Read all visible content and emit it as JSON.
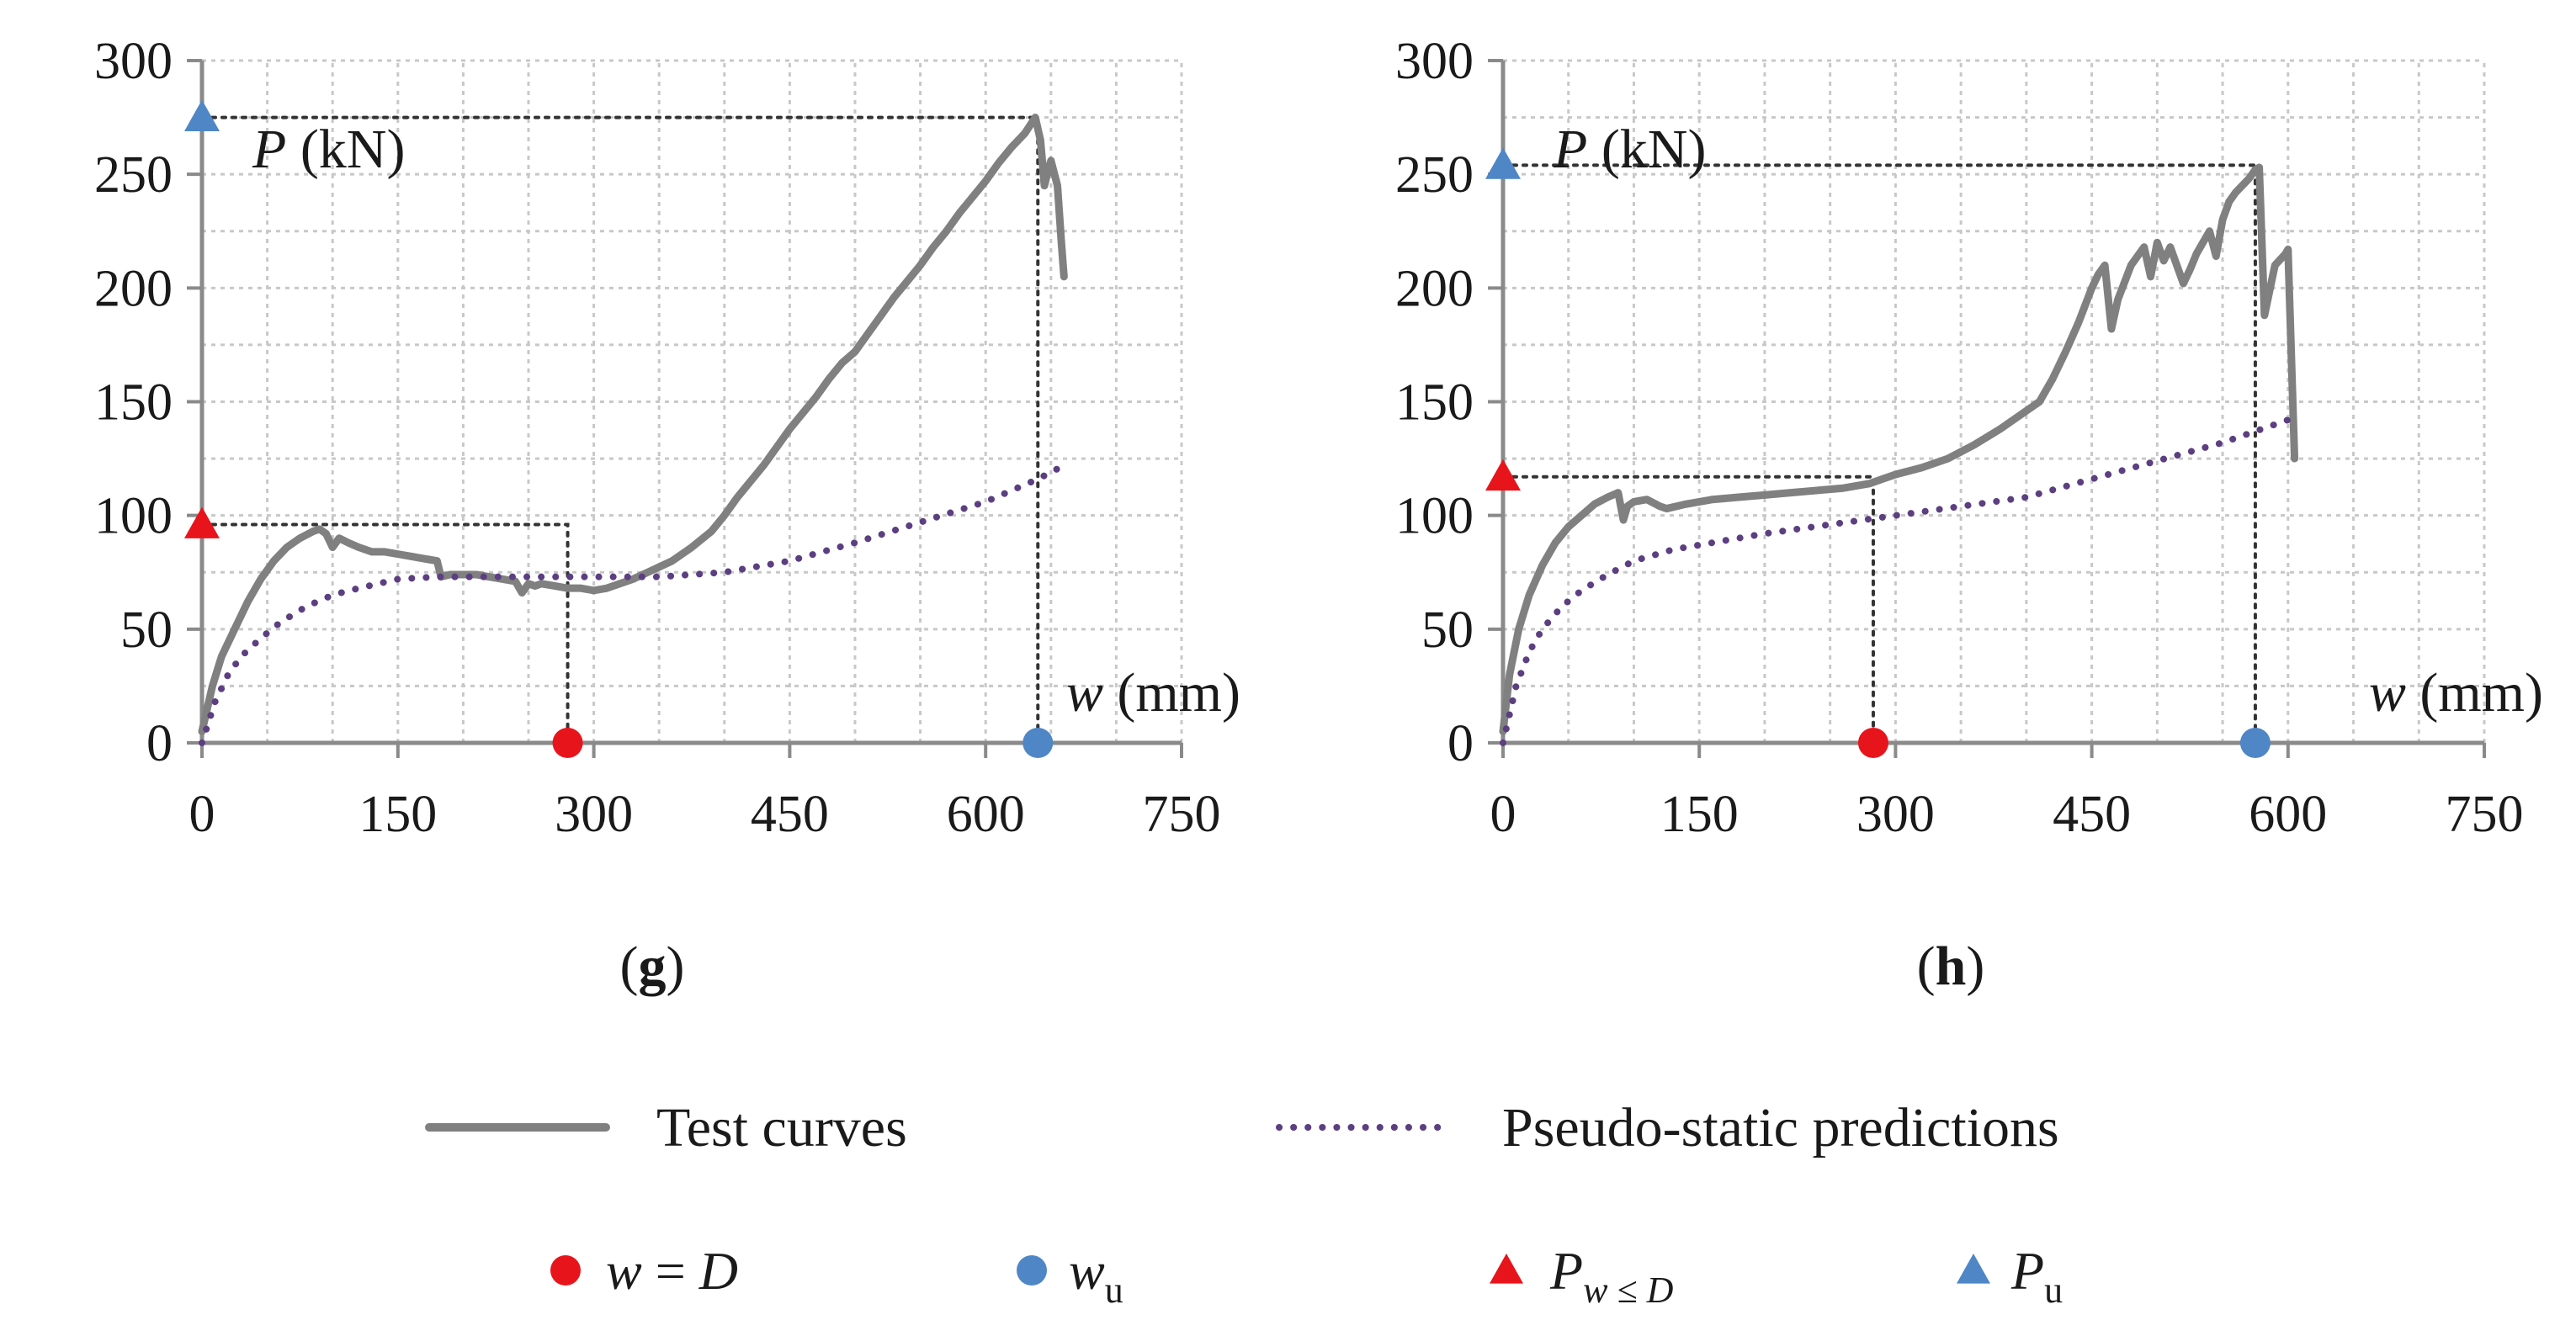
{
  "chart_data": [
    {
      "type": "line",
      "panel": "(g)",
      "panel_letter": "g",
      "xlabel": "w (mm)",
      "ylabel": "P (kN)",
      "xlim": [
        0,
        750
      ],
      "ylim": [
        0,
        300
      ],
      "xticks": [
        0,
        150,
        300,
        450,
        600,
        750
      ],
      "yticks": [
        0,
        50,
        100,
        150,
        200,
        250,
        300
      ],
      "grid": true,
      "series": [
        {
          "name": "Test curves",
          "style": "solid",
          "color": "#808080",
          "x": [
            0,
            8,
            15,
            25,
            35,
            45,
            55,
            65,
            75,
            85,
            90,
            95,
            100,
            105,
            112,
            120,
            130,
            140,
            150,
            160,
            170,
            180,
            183,
            190,
            200,
            210,
            220,
            230,
            240,
            245,
            250,
            255,
            260,
            270,
            280,
            290,
            300,
            310,
            320,
            330,
            345,
            360,
            375,
            390,
            400,
            410,
            420,
            430,
            440,
            450,
            460,
            470,
            480,
            490,
            500,
            510,
            520,
            530,
            540,
            550,
            560,
            570,
            580,
            590,
            600,
            610,
            620,
            630,
            638,
            642,
            645,
            648,
            650,
            655,
            658,
            660
          ],
          "y": [
            5,
            25,
            38,
            50,
            62,
            72,
            80,
            86,
            90,
            93,
            94,
            92,
            86,
            90,
            88,
            86,
            84,
            84,
            83,
            82,
            81,
            80,
            73,
            74,
            74,
            74,
            73,
            72,
            71,
            66,
            70,
            69,
            70,
            69,
            68,
            68,
            67,
            68,
            70,
            72,
            76,
            80,
            86,
            93,
            100,
            108,
            115,
            122,
            130,
            138,
            145,
            152,
            160,
            167,
            172,
            180,
            188,
            196,
            203,
            210,
            218,
            225,
            233,
            240,
            247,
            255,
            262,
            268,
            275,
            265,
            245,
            252,
            256,
            245,
            220,
            205
          ]
        },
        {
          "name": "Pseudo-static predictions",
          "style": "dotted",
          "color": "#5b3f80",
          "x": [
            0,
            10,
            20,
            30,
            45,
            60,
            80,
            100,
            120,
            150,
            180,
            210,
            250,
            300,
            350,
            400,
            450,
            500,
            550,
            600,
            640,
            660
          ],
          "y": [
            0,
            18,
            30,
            38,
            46,
            53,
            60,
            65,
            68,
            72,
            73,
            73,
            73,
            73,
            73,
            75,
            80,
            88,
            97,
            106,
            116,
            122
          ]
        }
      ],
      "markers": [
        {
          "kind": "w=D",
          "shape": "circle",
          "color": "#e8141b",
          "x": 280,
          "y": 0
        },
        {
          "kind": "P_w<=D",
          "shape": "triangle",
          "color": "#e8141b",
          "x": 0,
          "y": 96
        },
        {
          "kind": "w_u",
          "shape": "circle",
          "color": "#4f86c6",
          "x": 640,
          "y": 0
        },
        {
          "kind": "P_u",
          "shape": "triangle",
          "color": "#4f86c6",
          "x": 0,
          "y": 275
        }
      ],
      "guide_lines": [
        {
          "x": [
            0,
            280,
            280
          ],
          "y": [
            96,
            96,
            0
          ]
        },
        {
          "x": [
            0,
            640,
            640
          ],
          "y": [
            275,
            275,
            0
          ]
        }
      ]
    },
    {
      "type": "line",
      "panel": "(h)",
      "panel_letter": "h",
      "xlabel": "w (mm)",
      "ylabel": "P (kN)",
      "xlim": [
        0,
        750
      ],
      "ylim": [
        0,
        300
      ],
      "xticks": [
        0,
        150,
        300,
        450,
        600,
        750
      ],
      "yticks": [
        0,
        50,
        100,
        150,
        200,
        250,
        300
      ],
      "grid": true,
      "series": [
        {
          "name": "Test curves",
          "style": "solid",
          "color": "#808080",
          "x": [
            0,
            5,
            12,
            20,
            30,
            40,
            50,
            60,
            70,
            80,
            88,
            92,
            95,
            100,
            110,
            120,
            125,
            140,
            160,
            180,
            200,
            220,
            240,
            260,
            280,
            290,
            300,
            320,
            340,
            360,
            380,
            400,
            410,
            420,
            430,
            440,
            450,
            455,
            460,
            465,
            470,
            480,
            490,
            495,
            500,
            505,
            510,
            520,
            525,
            530,
            540,
            545,
            550,
            555,
            560,
            570,
            575,
            578,
            582,
            590,
            598,
            600,
            602,
            605
          ],
          "y": [
            5,
            30,
            50,
            65,
            78,
            88,
            95,
            100,
            105,
            108,
            110,
            98,
            104,
            106,
            107,
            104,
            103,
            105,
            107,
            108,
            109,
            110,
            111,
            112,
            114,
            116,
            118,
            121,
            125,
            131,
            138,
            146,
            150,
            160,
            172,
            185,
            200,
            206,
            210,
            182,
            195,
            210,
            218,
            205,
            220,
            212,
            218,
            202,
            208,
            215,
            225,
            214,
            230,
            238,
            242,
            248,
            252,
            253,
            188,
            210,
            215,
            217,
            180,
            125
          ]
        },
        {
          "name": "Pseudo-static predictions",
          "style": "dotted",
          "color": "#5b3f80",
          "x": [
            0,
            10,
            20,
            30,
            45,
            60,
            80,
            100,
            130,
            160,
            200,
            250,
            300,
            350,
            400,
            450,
            500,
            550,
            600
          ],
          "y": [
            0,
            25,
            40,
            50,
            60,
            67,
            74,
            80,
            85,
            88,
            92,
            96,
            100,
            104,
            108,
            116,
            124,
            132,
            142
          ]
        }
      ],
      "markers": [
        {
          "kind": "w=D",
          "shape": "circle",
          "color": "#e8141b",
          "x": 283,
          "y": 0
        },
        {
          "kind": "P_w<=D",
          "shape": "triangle",
          "color": "#e8141b",
          "x": 0,
          "y": 117
        },
        {
          "kind": "w_u",
          "shape": "circle",
          "color": "#4f86c6",
          "x": 575,
          "y": 0
        },
        {
          "kind": "P_u",
          "shape": "triangle",
          "color": "#4f86c6",
          "x": 0,
          "y": 254
        }
      ],
      "guide_lines": [
        {
          "x": [
            0,
            283,
            283
          ],
          "y": [
            117,
            117,
            0
          ]
        },
        {
          "x": [
            0,
            575,
            575
          ],
          "y": [
            254,
            254,
            0
          ]
        }
      ]
    }
  ],
  "legend": {
    "lines": [
      {
        "label": "Test curves",
        "style": "solid",
        "color": "#808080"
      },
      {
        "label": "Pseudo-static predictions",
        "style": "dotted",
        "color": "#5b3f80"
      }
    ],
    "markers": [
      {
        "shape": "circle",
        "color": "#e8141b",
        "symbol": "w",
        "operator": " = ",
        "rhs": "D",
        "subscript": ""
      },
      {
        "shape": "circle",
        "color": "#4f86c6",
        "symbol": "w",
        "operator": "",
        "rhs": "",
        "subscript": "u"
      },
      {
        "shape": "triangle",
        "color": "#e8141b",
        "symbol": "P",
        "operator": "",
        "rhs": "",
        "subscript": "w ≤ D"
      },
      {
        "shape": "triangle",
        "color": "#4f86c6",
        "symbol": "P",
        "operator": "",
        "rhs": "",
        "subscript": "u"
      }
    ]
  }
}
